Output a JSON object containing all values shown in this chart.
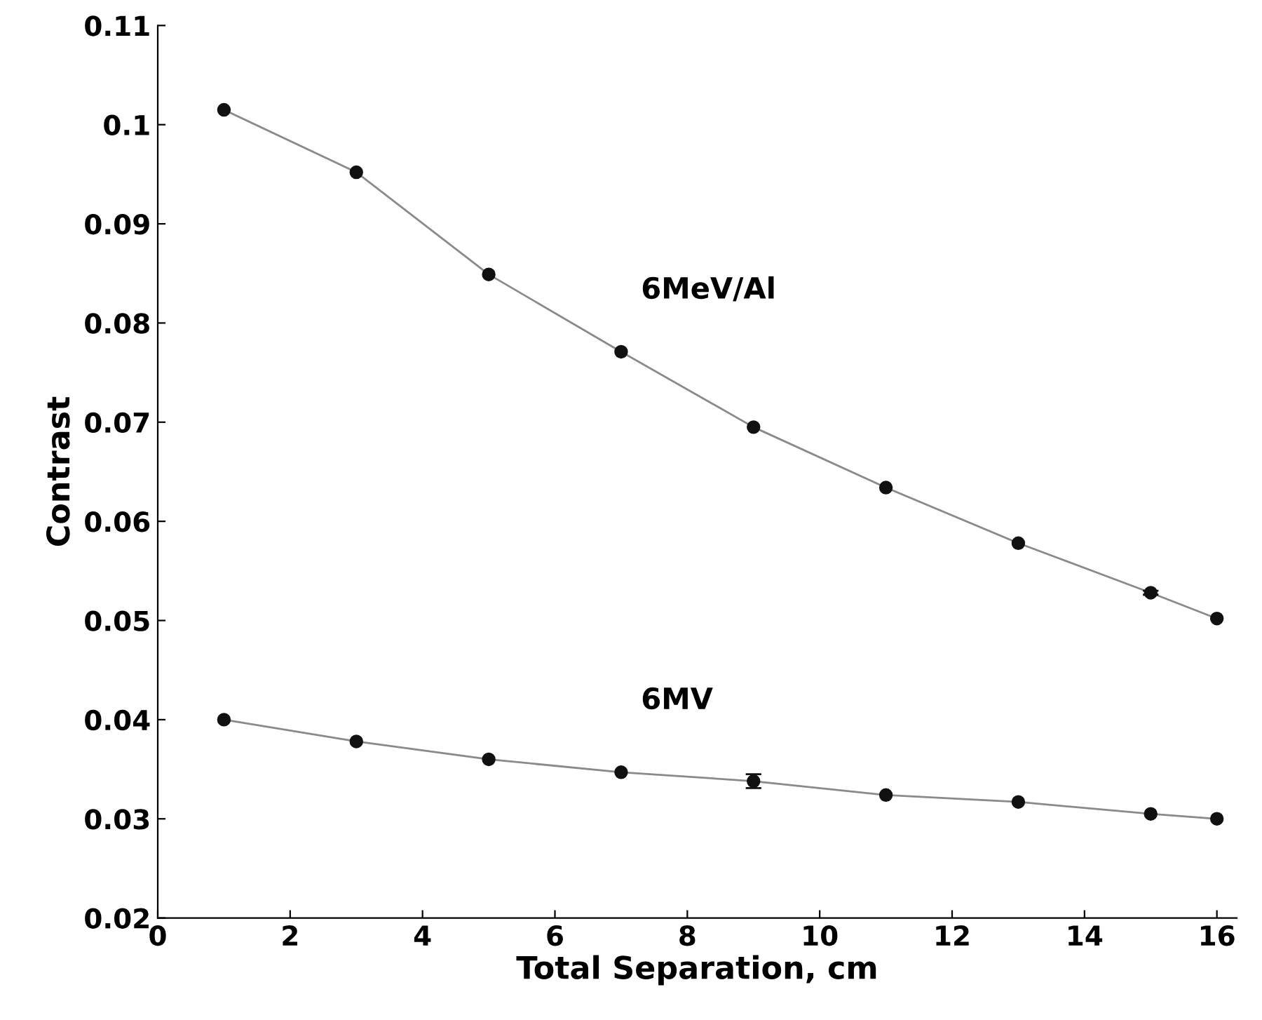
{
  "chart_data": {
    "type": "line",
    "xlabel": "Total Separation, cm",
    "ylabel": "Contrast",
    "xlim": [
      0,
      16.3
    ],
    "ylim": [
      0.02,
      0.11
    ],
    "xticks": [
      0,
      2,
      4,
      6,
      8,
      10,
      12,
      14,
      16
    ],
    "yticks": [
      0.02,
      0.03,
      0.04,
      0.05,
      0.06,
      0.07,
      0.08,
      0.09,
      0.1,
      0.11
    ],
    "grid": false,
    "legend": false,
    "marker": "circle",
    "line_style": "solid",
    "series": [
      {
        "name": "6MeV/Al",
        "color": "#111111",
        "x": [
          1,
          3,
          5,
          7,
          9,
          11,
          13,
          15,
          16
        ],
        "values": [
          0.1015,
          0.0952,
          0.0849,
          0.0771,
          0.0695,
          0.0634,
          0.0578,
          0.0528,
          0.0502
        ],
        "errors": [
          null,
          null,
          null,
          null,
          null,
          null,
          null,
          0.0002,
          null
        ]
      },
      {
        "name": "6MV",
        "color": "#111111",
        "x": [
          1,
          3,
          5,
          7,
          9,
          11,
          13,
          15,
          16
        ],
        "values": [
          0.04,
          0.0378,
          0.036,
          0.0347,
          0.0338,
          0.0324,
          0.0317,
          0.0305,
          0.03
        ],
        "errors": [
          null,
          null,
          null,
          null,
          0.0007,
          null,
          null,
          null,
          null
        ]
      }
    ]
  }
}
